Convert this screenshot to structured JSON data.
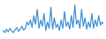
{
  "chart_data": {
    "type": "line",
    "x": [
      0,
      1,
      2,
      3,
      4,
      5,
      6,
      7,
      8,
      9,
      10,
      11,
      12,
      13,
      14,
      15,
      16,
      17,
      18,
      19,
      20,
      21,
      22,
      23,
      24,
      25,
      26,
      27,
      28,
      29,
      30,
      31,
      32,
      33,
      34,
      35,
      36,
      37,
      38,
      39,
      40,
      41,
      42,
      43,
      44,
      45,
      46,
      47,
      48,
      49,
      50,
      51,
      52,
      53,
      54,
      55,
      56,
      57,
      58,
      59
    ],
    "values": [
      35,
      30,
      38,
      32,
      40,
      34,
      30,
      36,
      42,
      33,
      38,
      45,
      36,
      40,
      55,
      48,
      60,
      42,
      70,
      50,
      85,
      40,
      60,
      45,
      75,
      35,
      55,
      40,
      90,
      38,
      65,
      42,
      50,
      35,
      60,
      40,
      80,
      45,
      55,
      38,
      70,
      42,
      95,
      50,
      60,
      40,
      85,
      45,
      65,
      38,
      55,
      42,
      75,
      40,
      60,
      45,
      70,
      48,
      55,
      50
    ],
    "color": "#3a8fd6",
    "xlim": [
      0,
      59
    ],
    "ylim": [
      20,
      100
    ],
    "tick_labels": false,
    "grid": false
  }
}
